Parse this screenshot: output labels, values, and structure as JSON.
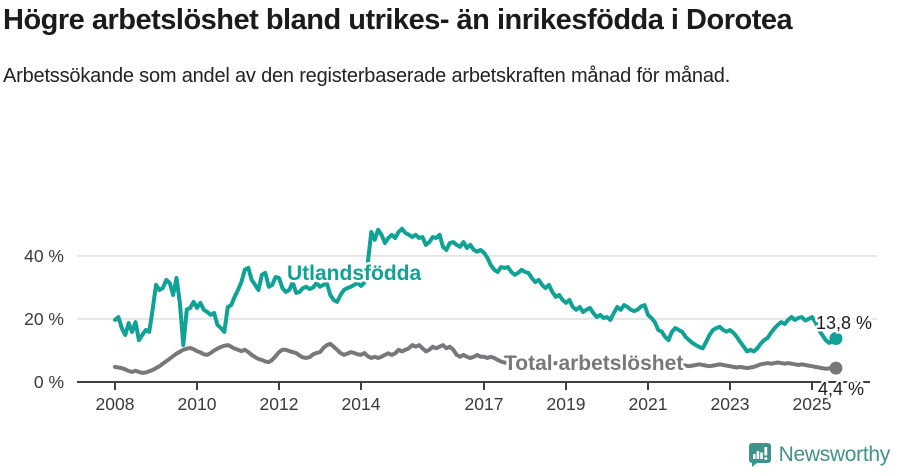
{
  "header": {
    "title": "Högre arbetslöshet bland utrikes- än inrikesfödda i Dorotea",
    "subtitle": "Arbetssökande som andel av den registerbaserade arbetskraften månad för månad."
  },
  "chart_data": {
    "type": "line",
    "x_start_year": 2008,
    "x_interval": "monthly",
    "x_ticks": [
      2008,
      2010,
      2012,
      2014,
      2017,
      2019,
      2021,
      2023,
      2025
    ],
    "y_ticks": [
      0,
      20,
      40
    ],
    "y_tick_labels": [
      "0 %",
      "20 %",
      "40 %"
    ],
    "ylim": [
      0,
      50
    ],
    "grid": "horizontal",
    "colors": {
      "utlandsfodda": "#0fa295",
      "total": "#78787c",
      "gridline": "#dcdcdc",
      "axis": "#404040",
      "tick_text": "#3a3a3a",
      "end_label_text": "#1d1d1d"
    },
    "series": [
      {
        "name": "Utlandsfödda",
        "end_label": "13,8 %",
        "values": [
          19.7,
          20.6,
          17.1,
          14.9,
          18.7,
          15.9,
          19.0,
          13.3,
          14.9,
          16.5,
          15.9,
          22.9,
          30.8,
          29.2,
          29.8,
          32.4,
          31.4,
          27.6,
          33.0,
          25.0,
          11.7,
          23.0,
          23.5,
          25.4,
          23.5,
          25.1,
          22.9,
          22.2,
          21.3,
          21.9,
          18.1,
          17.1,
          15.9,
          23.8,
          24.4,
          27.0,
          29.2,
          31.7,
          35.6,
          36.2,
          32.4,
          30.8,
          29.2,
          34.0,
          34.6,
          30.2,
          30.8,
          33.3,
          33.0,
          29.8,
          28.6,
          29.2,
          31.7,
          28.3,
          28.6,
          29.8,
          30.2,
          29.5,
          30.0,
          31.4,
          30.2,
          30.8,
          31.4,
          27.6,
          26.0,
          25.4,
          27.6,
          29.2,
          29.8,
          30.2,
          30.8,
          31.4,
          30.5,
          31.5,
          37.8,
          47.6,
          45.1,
          48.3,
          46.7,
          44.1,
          45.7,
          46.7,
          45.7,
          47.6,
          48.6,
          47.3,
          46.7,
          46.0,
          46.7,
          45.7,
          46.0,
          43.5,
          44.4,
          46.0,
          45.7,
          46.7,
          42.9,
          41.9,
          44.1,
          44.4,
          43.5,
          42.9,
          44.4,
          42.5,
          43.5,
          41.9,
          41.3,
          41.9,
          41.0,
          39.4,
          37.1,
          35.6,
          34.9,
          36.5,
          36.2,
          36.5,
          34.9,
          34.0,
          34.6,
          35.6,
          34.9,
          34.6,
          33.0,
          31.7,
          32.4,
          30.8,
          29.8,
          30.8,
          28.6,
          27.0,
          27.6,
          26.0,
          25.1,
          26.0,
          23.8,
          22.9,
          23.8,
          22.2,
          22.9,
          23.5,
          21.9,
          20.6,
          21.3,
          20.3,
          20.6,
          19.7,
          21.9,
          23.8,
          22.9,
          24.4,
          23.8,
          22.9,
          22.5,
          23.0,
          24.0,
          24.4,
          21.3,
          20.3,
          19.0,
          16.5,
          16.0,
          14.3,
          13.3,
          15.9,
          17.1,
          16.5,
          15.9,
          14.3,
          13.3,
          12.4,
          11.7,
          11.1,
          10.7,
          12.7,
          14.9,
          16.5,
          17.1,
          17.5,
          16.5,
          16.0,
          16.5,
          15.6,
          14.3,
          12.7,
          11.2,
          9.7,
          10.2,
          9.7,
          10.7,
          12.2,
          13.3,
          14.0,
          15.6,
          17.0,
          18.1,
          19.0,
          18.4,
          19.7,
          20.6,
          19.7,
          20.3,
          20.6,
          19.5,
          20.0,
          20.6,
          19.0,
          16.5,
          14.9,
          13.3,
          12.4,
          12.9,
          13.8
        ]
      },
      {
        "name": "Total arbetslöshet",
        "end_label": "4,4 %",
        "values": [
          4.8,
          4.6,
          4.4,
          4.0,
          3.5,
          3.2,
          3.6,
          3.2,
          2.9,
          3.0,
          3.4,
          3.8,
          4.4,
          5.0,
          5.8,
          6.6,
          7.4,
          8.2,
          9.0,
          9.6,
          10.2,
          10.6,
          10.8,
          10.4,
          9.8,
          9.4,
          8.8,
          8.6,
          9.2,
          10.0,
          10.6,
          11.1,
          11.5,
          11.7,
          11.2,
          10.6,
          10.2,
          9.8,
          10.2,
          9.5,
          8.6,
          7.9,
          7.3,
          7.0,
          6.5,
          6.3,
          7.0,
          8.2,
          9.5,
          10.2,
          10.2,
          9.8,
          9.5,
          9.2,
          8.4,
          7.8,
          7.6,
          7.9,
          8.8,
          9.2,
          9.5,
          10.8,
          11.7,
          12.1,
          11.2,
          10.2,
          9.2,
          8.6,
          9.0,
          9.5,
          9.2,
          8.8,
          8.6,
          9.2,
          8.2,
          7.6,
          8.0,
          7.6,
          8.0,
          8.6,
          9.1,
          8.6,
          9.1,
          10.2,
          9.7,
          10.2,
          10.7,
          11.7,
          11.2,
          11.7,
          10.7,
          9.7,
          10.2,
          11.2,
          10.7,
          11.2,
          11.7,
          10.7,
          11.2,
          10.2,
          8.6,
          8.0,
          8.6,
          8.0,
          7.6,
          8.0,
          8.6,
          8.0,
          8.0,
          7.6,
          8.0,
          7.6,
          7.0,
          6.5,
          6.2,
          6.0,
          6.2,
          6.5,
          6.8,
          7.0,
          6.8,
          6.5,
          6.2,
          6.0,
          5.8,
          5.6,
          5.4,
          5.6,
          5.8,
          6.0,
          6.2,
          6.0,
          5.8,
          5.6,
          5.4,
          5.2,
          5.4,
          5.6,
          5.8,
          6.0,
          5.8,
          5.6,
          5.4,
          5.6,
          5.8,
          6.0,
          6.5,
          7.0,
          7.2,
          7.0,
          6.8,
          6.5,
          6.2,
          6.0,
          5.8,
          5.6,
          5.4,
          5.6,
          5.8,
          5.6,
          5.4,
          5.2,
          5.0,
          4.8,
          5.0,
          5.2,
          5.4,
          5.2,
          5.0,
          5.2,
          5.4,
          5.6,
          5.4,
          5.2,
          5.0,
          5.2,
          5.4,
          5.6,
          5.4,
          5.2,
          5.0,
          4.8,
          4.6,
          4.8,
          4.6,
          4.4,
          4.6,
          4.8,
          5.2,
          5.6,
          5.8,
          6.0,
          5.8,
          6.0,
          6.2,
          6.0,
          5.8,
          6.0,
          5.8,
          5.6,
          5.4,
          5.6,
          5.4,
          5.2,
          5.0,
          4.8,
          4.6,
          4.4,
          4.2,
          4.3,
          4.4,
          4.4
        ]
      }
    ]
  },
  "footer": {
    "brand": "Newsworthy"
  }
}
